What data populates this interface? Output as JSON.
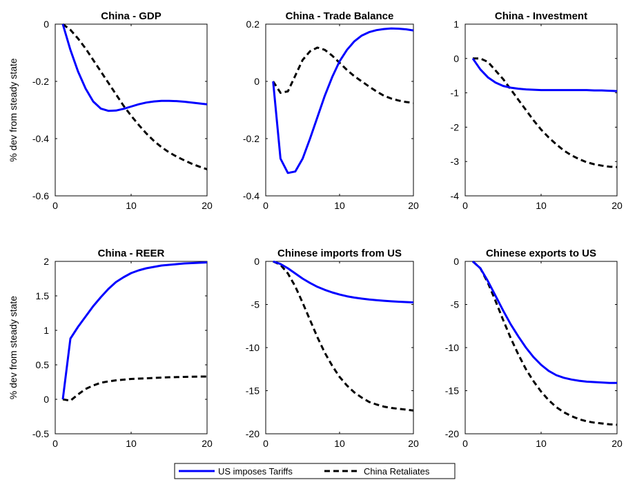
{
  "chart_data": [
    {
      "type": "line",
      "title": "China - GDP",
      "ylabel": "% dev from steady state",
      "xlim": [
        0,
        20
      ],
      "ylim": [
        -0.6,
        0
      ],
      "xticks": [
        0,
        10,
        20
      ],
      "yticks": [
        0,
        -0.2,
        -0.4,
        -0.6
      ],
      "ytick_labels": [
        "0",
        "-0.2",
        "-0.4",
        "-0.6"
      ],
      "x": [
        1,
        2,
        3,
        4,
        5,
        6,
        7,
        8,
        9,
        10,
        11,
        12,
        13,
        14,
        15,
        16,
        17,
        18,
        19,
        20
      ],
      "series": [
        {
          "name": "US imposes Tariffs",
          "values": [
            0,
            -0.09,
            -0.165,
            -0.225,
            -0.27,
            -0.295,
            -0.303,
            -0.302,
            -0.296,
            -0.288,
            -0.28,
            -0.274,
            -0.27,
            -0.268,
            -0.268,
            -0.269,
            -0.271,
            -0.274,
            -0.277,
            -0.28
          ]
        },
        {
          "name": "China Retaliates",
          "values": [
            0,
            -0.02,
            -0.05,
            -0.085,
            -0.125,
            -0.165,
            -0.205,
            -0.245,
            -0.285,
            -0.32,
            -0.352,
            -0.382,
            -0.408,
            -0.43,
            -0.448,
            -0.463,
            -0.476,
            -0.488,
            -0.498,
            -0.507
          ]
        }
      ]
    },
    {
      "type": "line",
      "title": "China - Trade Balance",
      "ylabel": "",
      "xlim": [
        0,
        20
      ],
      "ylim": [
        -0.4,
        0.2
      ],
      "xticks": [
        0,
        10,
        20
      ],
      "yticks": [
        0.2,
        0,
        -0.2,
        -0.4
      ],
      "ytick_labels": [
        "0.2",
        "0",
        "-0.2",
        "-0.4"
      ],
      "x": [
        1,
        2,
        3,
        4,
        5,
        6,
        7,
        8,
        9,
        10,
        11,
        12,
        13,
        14,
        15,
        16,
        17,
        18,
        19,
        20
      ],
      "series": [
        {
          "name": "US imposes Tariffs",
          "values": [
            0,
            -0.27,
            -0.32,
            -0.315,
            -0.27,
            -0.2,
            -0.125,
            -0.05,
            0.015,
            0.07,
            0.11,
            0.14,
            0.16,
            0.172,
            0.179,
            0.183,
            0.185,
            0.184,
            0.182,
            0.178
          ]
        },
        {
          "name": "China Retaliates",
          "values": [
            0,
            -0.04,
            -0.035,
            0.02,
            0.075,
            0.105,
            0.118,
            0.11,
            0.09,
            0.065,
            0.04,
            0.018,
            0,
            -0.018,
            -0.035,
            -0.05,
            -0.06,
            -0.067,
            -0.072,
            -0.075
          ]
        }
      ]
    },
    {
      "type": "line",
      "title": "China - Investment",
      "ylabel": "",
      "xlim": [
        0,
        20
      ],
      "ylim": [
        -4,
        1
      ],
      "xticks": [
        0,
        10,
        20
      ],
      "yticks": [
        1,
        0,
        -1,
        -2,
        -3,
        -4
      ],
      "ytick_labels": [
        "1",
        "0",
        "-1",
        "-2",
        "-3",
        "-4"
      ],
      "x": [
        1,
        2,
        3,
        4,
        5,
        6,
        7,
        8,
        9,
        10,
        11,
        12,
        13,
        14,
        15,
        16,
        17,
        18,
        19,
        20
      ],
      "series": [
        {
          "name": "US imposes Tariffs",
          "values": [
            0,
            -0.32,
            -0.55,
            -0.7,
            -0.8,
            -0.85,
            -0.88,
            -0.9,
            -0.91,
            -0.92,
            -0.92,
            -0.92,
            -0.92,
            -0.92,
            -0.92,
            -0.92,
            -0.93,
            -0.93,
            -0.94,
            -0.95
          ]
        },
        {
          "name": "China Retaliates",
          "values": [
            0,
            0,
            -0.1,
            -0.35,
            -0.6,
            -0.9,
            -1.2,
            -1.5,
            -1.8,
            -2.07,
            -2.3,
            -2.5,
            -2.68,
            -2.82,
            -2.93,
            -3.02,
            -3.08,
            -3.12,
            -3.15,
            -3.16
          ]
        }
      ]
    },
    {
      "type": "line",
      "title": "China - REER",
      "ylabel": "% dev from steady state",
      "xlim": [
        0,
        20
      ],
      "ylim": [
        -0.5,
        2
      ],
      "xticks": [
        0,
        10,
        20
      ],
      "yticks": [
        2,
        1.5,
        1,
        0.5,
        0,
        -0.5
      ],
      "ytick_labels": [
        "2",
        "1.5",
        "1",
        "0.5",
        "0",
        "-0.5"
      ],
      "x": [
        1,
        2,
        3,
        4,
        5,
        6,
        7,
        8,
        9,
        10,
        11,
        12,
        13,
        14,
        15,
        16,
        17,
        18,
        19,
        20
      ],
      "series": [
        {
          "name": "US imposes Tariffs",
          "values": [
            0,
            0.88,
            1.05,
            1.2,
            1.35,
            1.48,
            1.6,
            1.7,
            1.77,
            1.83,
            1.87,
            1.9,
            1.92,
            1.94,
            1.95,
            1.96,
            1.97,
            1.975,
            1.98,
            1.985
          ]
        },
        {
          "name": "China Retaliates",
          "values": [
            0,
            -0.02,
            0.07,
            0.15,
            0.2,
            0.24,
            0.26,
            0.275,
            0.285,
            0.295,
            0.3,
            0.305,
            0.31,
            0.315,
            0.32,
            0.322,
            0.325,
            0.327,
            0.33,
            0.33
          ]
        }
      ]
    },
    {
      "type": "line",
      "title": "Chinese imports from US",
      "ylabel": "",
      "xlim": [
        0,
        20
      ],
      "ylim": [
        -20,
        0
      ],
      "xticks": [
        0,
        10,
        20
      ],
      "yticks": [
        0,
        -5,
        -10,
        -15,
        -20
      ],
      "ytick_labels": [
        "0",
        "-5",
        "-10",
        "-15",
        "-20"
      ],
      "x": [
        1,
        2,
        3,
        4,
        5,
        6,
        7,
        8,
        9,
        10,
        11,
        12,
        13,
        14,
        15,
        16,
        17,
        18,
        19,
        20
      ],
      "series": [
        {
          "name": "US imposes Tariffs",
          "values": [
            0,
            -0.3,
            -0.8,
            -1.4,
            -2,
            -2.5,
            -2.95,
            -3.3,
            -3.6,
            -3.85,
            -4.05,
            -4.2,
            -4.32,
            -4.42,
            -4.5,
            -4.57,
            -4.63,
            -4.68,
            -4.72,
            -4.76
          ]
        },
        {
          "name": "China Retaliates",
          "values": [
            0,
            -0.4,
            -1.4,
            -2.9,
            -4.8,
            -6.8,
            -8.8,
            -10.6,
            -12.1,
            -13.4,
            -14.4,
            -15.2,
            -15.8,
            -16.3,
            -16.6,
            -16.85,
            -17.0,
            -17.1,
            -17.2,
            -17.3
          ]
        }
      ]
    },
    {
      "type": "line",
      "title": "Chinese exports to US",
      "ylabel": "",
      "xlim": [
        0,
        20
      ],
      "ylim": [
        -20,
        0
      ],
      "xticks": [
        0,
        10,
        20
      ],
      "yticks": [
        0,
        -5,
        -10,
        -15,
        -20
      ],
      "ytick_labels": [
        "0",
        "-5",
        "-10",
        "-15",
        "-20"
      ],
      "x": [
        1,
        2,
        3,
        4,
        5,
        6,
        7,
        8,
        9,
        10,
        11,
        12,
        13,
        14,
        15,
        16,
        17,
        18,
        19,
        20
      ],
      "series": [
        {
          "name": "US imposes Tariffs",
          "values": [
            0,
            -0.8,
            -2.3,
            -4,
            -5.7,
            -7.3,
            -8.7,
            -10,
            -11.1,
            -12,
            -12.7,
            -13.2,
            -13.5,
            -13.7,
            -13.85,
            -13.95,
            -14,
            -14.05,
            -14.1,
            -14.1
          ]
        },
        {
          "name": "China Retaliates",
          "values": [
            0,
            -0.8,
            -2.5,
            -4.6,
            -6.8,
            -8.9,
            -10.8,
            -12.5,
            -13.9,
            -15.1,
            -16.1,
            -16.9,
            -17.5,
            -17.95,
            -18.3,
            -18.55,
            -18.7,
            -18.8,
            -18.9,
            -18.95
          ]
        }
      ]
    }
  ],
  "legend": {
    "placement": "bottom-center",
    "entries": [
      {
        "label": "US imposes Tariffs",
        "color": "#0000ff",
        "style": "solid"
      },
      {
        "label": "China Retaliates",
        "color": "#000000",
        "style": "dashed"
      }
    ]
  }
}
